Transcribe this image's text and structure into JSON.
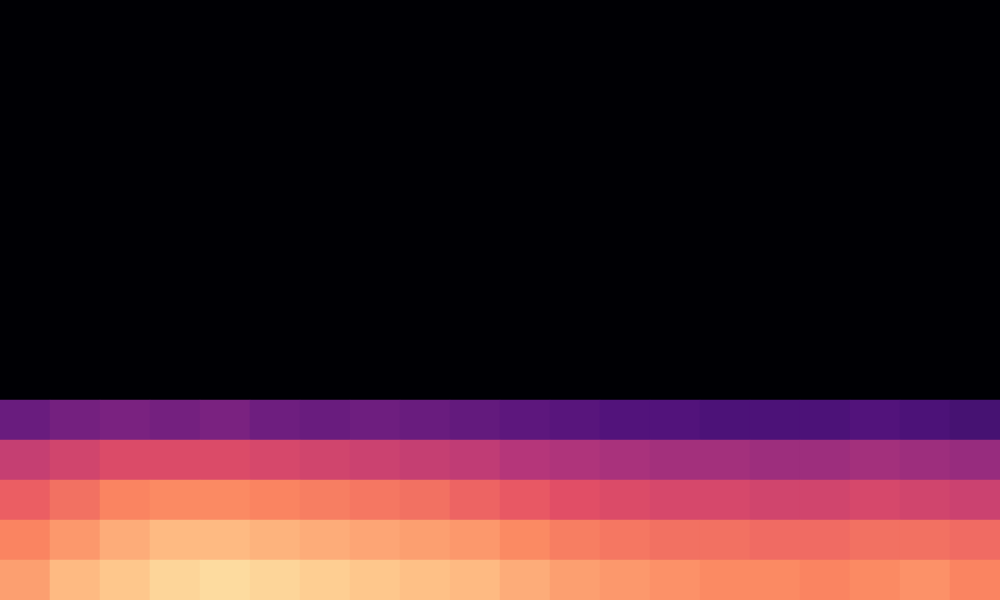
{
  "chart_data": {
    "type": "heatmap",
    "tick_labels": false,
    "clim": [
      -80,
      -10
    ],
    "cells": [
      [
        -80,
        -80,
        -80,
        -80,
        -80,
        -80,
        -80,
        -80,
        -80,
        -80,
        -80,
        -80,
        -80,
        -80,
        -80,
        -80,
        -80,
        -80,
        -80,
        -80
      ],
      [
        -80,
        -80,
        -80,
        -80,
        -80,
        -80,
        -80,
        -80,
        -80,
        -80,
        -80,
        -80,
        -80,
        -80,
        -80,
        -80,
        -80,
        -80,
        -80,
        -80
      ],
      [
        -80,
        -80,
        -80,
        -80,
        -80,
        -80,
        -80,
        -80,
        -80,
        -80,
        -80,
        -80,
        -80,
        -80,
        -80,
        -80,
        -80,
        -80,
        -80,
        -80
      ],
      [
        -80,
        -80,
        -80,
        -80,
        -80,
        -80,
        -80,
        -80,
        -80,
        -80,
        -80,
        -80,
        -80,
        -80,
        -80,
        -80,
        -80,
        -80,
        -80,
        -80
      ],
      [
        -80,
        -80,
        -80,
        -80,
        -80,
        -80,
        -80,
        -80,
        -80,
        -80,
        -80,
        -80,
        -80,
        -80,
        -80,
        -80,
        -80,
        -80,
        -80,
        -80
      ],
      [
        -80,
        -80,
        -80,
        -80,
        -80,
        -80,
        -80,
        -80,
        -80,
        -80,
        -80,
        -80,
        -80,
        -80,
        -80,
        -80,
        -80,
        -80,
        -80,
        -80
      ],
      [
        -80,
        -80,
        -80,
        -80,
        -80,
        -80,
        -80,
        -80,
        -80,
        -80,
        -80,
        -80,
        -80,
        -80,
        -80,
        -80,
        -80,
        -80,
        -80,
        -80
      ],
      [
        -80,
        -80,
        -80,
        -80,
        -80,
        -80,
        -80,
        -80,
        -80,
        -80,
        -80,
        -80,
        -80,
        -80,
        -80,
        -80,
        -80,
        -80,
        -80,
        -80
      ],
      [
        -80,
        -80,
        -80,
        -80,
        -80,
        -80,
        -80,
        -80,
        -80,
        -80,
        -80,
        -80,
        -80,
        -80,
        -80,
        -80,
        -80,
        -80,
        -80,
        -80
      ],
      [
        -80,
        -80,
        -80,
        -80,
        -80,
        -80,
        -80,
        -80,
        -80,
        -80,
        -80,
        -80,
        -80,
        -80,
        -80,
        -80,
        -80,
        -80,
        -80,
        -80
      ],
      [
        -58,
        -56,
        -55,
        -56,
        -55,
        -57,
        -58,
        -57,
        -58,
        -59,
        -60,
        -61,
        -62,
        -62,
        -63,
        -63,
        -63,
        -62,
        -63,
        -64
      ],
      [
        -42,
        -40,
        -38,
        -38,
        -38,
        -39,
        -40,
        -41,
        -42,
        -43,
        -45,
        -46,
        -47,
        -48,
        -48,
        -49,
        -49,
        -48,
        -49,
        -50
      ],
      [
        -34,
        -31,
        -28,
        -27,
        -27,
        -28,
        -29,
        -30,
        -31,
        -33,
        -35,
        -37,
        -38,
        -39,
        -39,
        -40,
        -40,
        -39,
        -40,
        -41
      ],
      [
        -28,
        -25,
        -22,
        -20,
        -20,
        -21,
        -22,
        -23,
        -24,
        -25,
        -27,
        -29,
        -30,
        -31,
        -31,
        -32,
        -32,
        -31,
        -31,
        -32
      ],
      [
        -24,
        -20,
        -18,
        -16,
        -15,
        -16,
        -17,
        -18,
        -19,
        -20,
        -22,
        -24,
        -25,
        -26,
        -27,
        -27,
        -28,
        -27,
        -26,
        -28
      ]
    ]
  }
}
